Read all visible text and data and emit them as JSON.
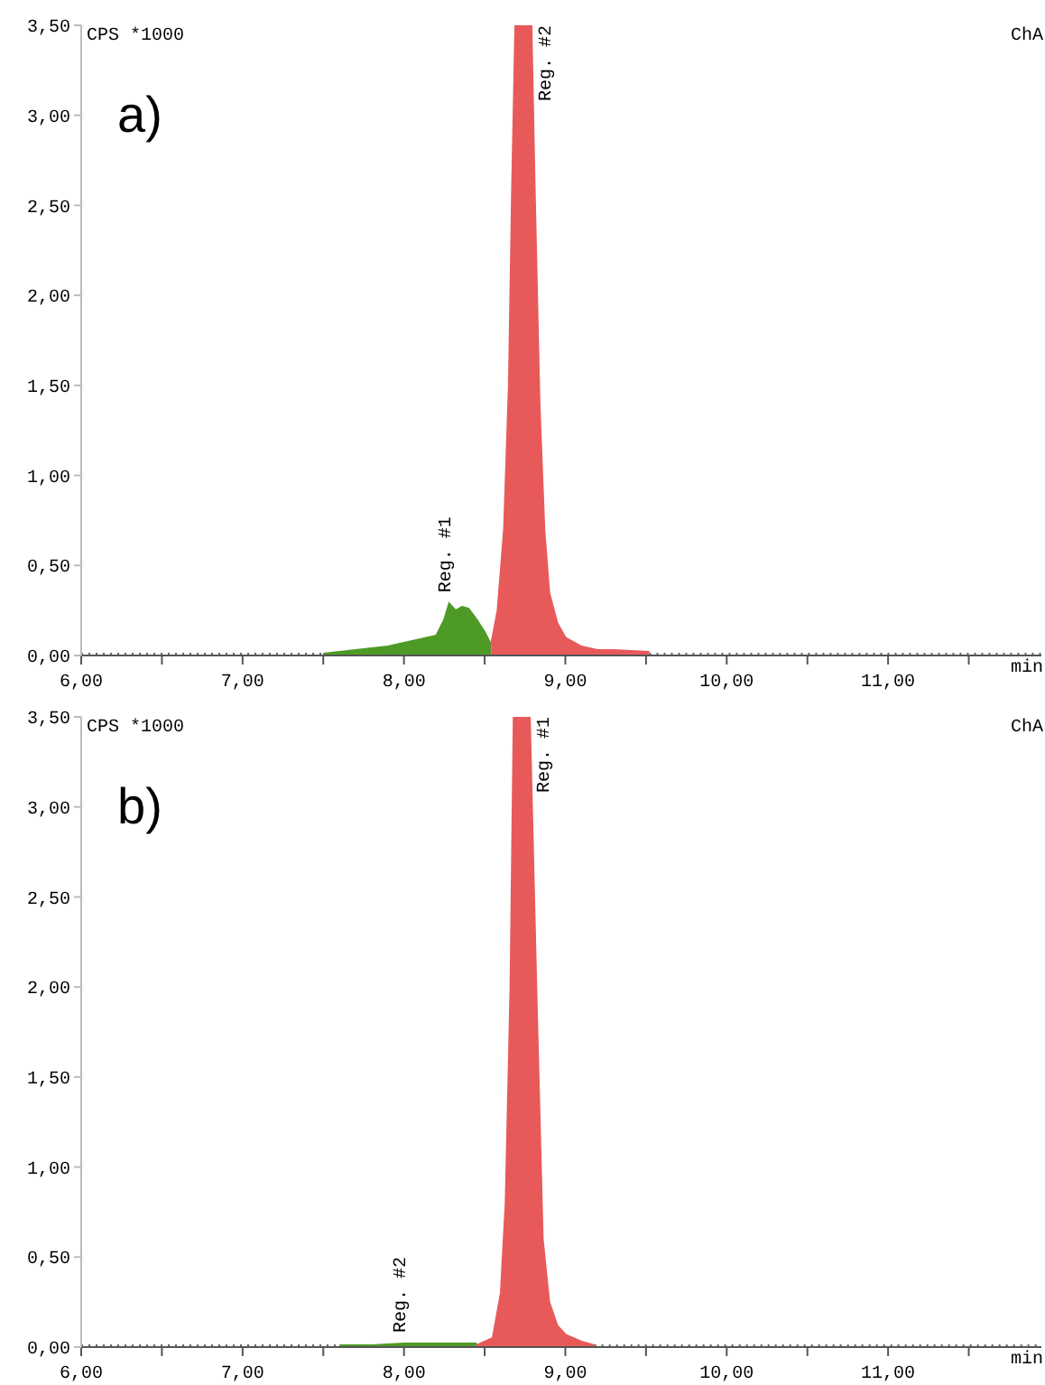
{
  "chart_data": [
    {
      "type": "area",
      "title": "a)",
      "xlabel": "min",
      "ylabel": "CPS *1000",
      "annotations": [
        "ChA",
        {
          "text": "Reg. #1",
          "x": 8.28,
          "y": 0.29
        },
        {
          "text": "Reg. #2",
          "x": 8.79,
          "y": 3.5
        }
      ],
      "xlim": [
        6,
        11.95
      ],
      "xticks": [
        {
          "value": 6,
          "label": "6,00"
        },
        {
          "value": 6.5,
          "label": null
        },
        {
          "value": 7,
          "label": "7,00"
        },
        {
          "value": 7.5,
          "label": null
        },
        {
          "value": 8,
          "label": "8,00"
        },
        {
          "value": 8.5,
          "label": null
        },
        {
          "value": 9,
          "label": "9,00"
        },
        {
          "value": 9.5,
          "label": null
        },
        {
          "value": 10,
          "label": "10,00"
        },
        {
          "value": 10.5,
          "label": null
        },
        {
          "value": 11,
          "label": "11,00"
        },
        {
          "value": 11.5,
          "label": null
        }
      ],
      "ylim": [
        0,
        3.5
      ],
      "yticks": [
        {
          "value": 0,
          "label": "0,00"
        },
        {
          "value": 0.5,
          "label": "0,50"
        },
        {
          "value": 1,
          "label": "1,00"
        },
        {
          "value": 1.5,
          "label": "1,50"
        },
        {
          "value": 2,
          "label": "2,00"
        },
        {
          "value": 2.5,
          "label": "2,50"
        },
        {
          "value": 3,
          "label": "3,00"
        },
        {
          "value": 3.5,
          "label": "3,50"
        }
      ],
      "series": [
        {
          "color": "#4e9a26",
          "x": [
            7.5,
            7.7,
            7.9,
            8.0,
            8.1,
            8.2,
            8.25,
            8.28,
            8.32,
            8.36,
            8.4,
            8.45,
            8.5,
            8.54
          ],
          "values": [
            0.01,
            0.03,
            0.05,
            0.07,
            0.09,
            0.11,
            0.2,
            0.29,
            0.25,
            0.27,
            0.26,
            0.2,
            0.13,
            0.06
          ]
        },
        {
          "color": "#e85a5a",
          "x": [
            8.54,
            8.58,
            8.62,
            8.65,
            8.67,
            8.69,
            8.79,
            8.81,
            8.84,
            8.87,
            8.9,
            8.95,
            9.0,
            9.1,
            9.2,
            9.3,
            9.52
          ],
          "values": [
            0.06,
            0.25,
            0.7,
            1.5,
            2.6,
            3.5,
            3.5,
            2.6,
            1.4,
            0.7,
            0.35,
            0.18,
            0.1,
            0.05,
            0.03,
            0.03,
            0.02
          ]
        },
        {
          "type": "line",
          "color": "#666666",
          "line_style": "dotted",
          "x": [
            6,
            6.5,
            7,
            7.5
          ],
          "values": [
            0.01,
            0.01,
            0.01,
            0.01
          ]
        },
        {
          "type": "line",
          "color": "#666666",
          "line_style": "dotted",
          "x": [
            9.52,
            10,
            10.5,
            11,
            11.5,
            11.95
          ],
          "values": [
            0.01,
            0.01,
            0.01,
            0.01,
            0.01,
            0.01
          ]
        }
      ]
    },
    {
      "type": "area",
      "title": "b)",
      "xlabel": "min",
      "ylabel": "CPS *1000",
      "annotations": [
        "ChA",
        {
          "text": "Reg. #1",
          "x": 8.78,
          "y": 3.5
        },
        {
          "text": "Reg. #2",
          "x": 8.0,
          "y": 0.02
        }
      ],
      "xlim": [
        6,
        11.95
      ],
      "xticks": [
        {
          "value": 6,
          "label": "6,00"
        },
        {
          "value": 6.5,
          "label": null
        },
        {
          "value": 7,
          "label": "7,00"
        },
        {
          "value": 7.5,
          "label": null
        },
        {
          "value": 8,
          "label": "8,00"
        },
        {
          "value": 8.5,
          "label": null
        },
        {
          "value": 9,
          "label": "9,00"
        },
        {
          "value": 9.5,
          "label": null
        },
        {
          "value": 10,
          "label": "10,00"
        },
        {
          "value": 10.5,
          "label": null
        },
        {
          "value": 11,
          "label": "11,00"
        },
        {
          "value": 11.5,
          "label": null
        }
      ],
      "ylim": [
        0,
        3.5
      ],
      "yticks": [
        {
          "value": 0,
          "label": "0,00"
        },
        {
          "value": 0.5,
          "label": "0,50"
        },
        {
          "value": 1,
          "label": "1,00"
        },
        {
          "value": 1.5,
          "label": "1,50"
        },
        {
          "value": 2,
          "label": "2,00"
        },
        {
          "value": 2.5,
          "label": "2,50"
        },
        {
          "value": 3,
          "label": "3,00"
        },
        {
          "value": 3.5,
          "label": "3,50"
        }
      ],
      "series": [
        {
          "color": "#4e9a26",
          "x": [
            7.6,
            7.8,
            8.0,
            8.2,
            8.45
          ],
          "values": [
            0.01,
            0.01,
            0.02,
            0.02,
            0.02
          ]
        },
        {
          "color": "#e85a5a",
          "x": [
            8.45,
            8.55,
            8.6,
            8.63,
            8.66,
            8.68,
            8.78,
            8.82,
            8.86,
            8.9,
            8.95,
            9.0,
            9.1,
            9.18
          ],
          "values": [
            0.01,
            0.05,
            0.3,
            0.8,
            2.0,
            3.5,
            3.5,
            2.0,
            0.6,
            0.25,
            0.12,
            0.07,
            0.03,
            0.01
          ]
        },
        {
          "type": "line",
          "color": "#666666",
          "line_style": "dotted",
          "x": [
            6,
            6.5,
            7,
            7.6
          ],
          "values": [
            0.01,
            0.01,
            0.01,
            0.01
          ]
        },
        {
          "type": "line",
          "color": "#666666",
          "line_style": "dotted",
          "x": [
            9.18,
            9.5,
            10,
            10.5,
            11,
            11.5,
            11.95
          ],
          "values": [
            0.01,
            0.01,
            0.01,
            0.01,
            0.01,
            0.01,
            0.01
          ]
        }
      ]
    }
  ]
}
